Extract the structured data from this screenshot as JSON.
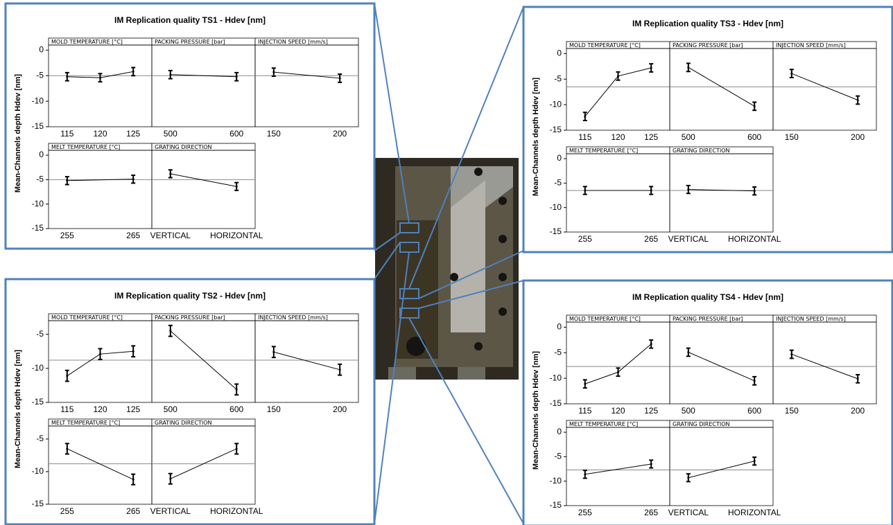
{
  "chart_data": [
    {
      "type": "line",
      "title": "IM Replication quality TS1 - Hdev [nm]",
      "ylabel": "Mean-Channels depth Hdev [nm]",
      "ylim": [
        -15,
        1
      ],
      "yticks": [
        -15,
        -10,
        -5,
        0
      ],
      "mean": -5,
      "color": "#000000",
      "panels": [
        {
          "title": "MOLD TEMPERATURE [°C]",
          "categories": [
            "115",
            "120",
            "125"
          ],
          "values": [
            -5.2,
            -5.4,
            -4.2
          ],
          "errors": [
            0.8,
            0.8,
            0.8
          ]
        },
        {
          "title": "PACKING PRESSURE [bar]",
          "categories": [
            "500",
            "600"
          ],
          "values": [
            -4.8,
            -5.2
          ],
          "errors": [
            0.8,
            0.8
          ]
        },
        {
          "title": "INJECTION SPEED [mm/s]",
          "categories": [
            "150",
            "200"
          ],
          "values": [
            -4.3,
            -5.5
          ],
          "errors": [
            0.8,
            0.8
          ]
        },
        {
          "title": "MELT TEMPERATURE [°C]",
          "categories": [
            "255",
            "265"
          ],
          "values": [
            -5.2,
            -4.9
          ],
          "errors": [
            0.8,
            0.8
          ]
        },
        {
          "title": "GRATING DIRECTION",
          "categories": [
            "VERTICAL",
            "HORIZONTAL"
          ],
          "values": [
            -3.8,
            -6.4
          ],
          "errors": [
            0.8,
            0.8
          ]
        }
      ]
    },
    {
      "type": "line",
      "title": "IM Replication quality TS2 - Hdev [nm]",
      "ylabel": "Mean-Channels depth Hdev [nm]",
      "ylim": [
        -15,
        -3
      ],
      "yticks": [
        -15,
        -10,
        -5
      ],
      "mean": -8.8,
      "color": "#000000",
      "panels": [
        {
          "title": "MOLD TEMPERATURE [°C]",
          "categories": [
            "115",
            "120",
            "125"
          ],
          "values": [
            -11.1,
            -7.9,
            -7.5
          ],
          "errors": [
            0.8,
            0.8,
            0.8
          ]
        },
        {
          "title": "PACKING PRESSURE [bar]",
          "categories": [
            "500",
            "600"
          ],
          "values": [
            -4.5,
            -13.1
          ],
          "errors": [
            0.8,
            0.8
          ]
        },
        {
          "title": "INJECTION SPEED [mm/s]",
          "categories": [
            "150",
            "200"
          ],
          "values": [
            -7.6,
            -10.2
          ],
          "errors": [
            0.8,
            0.8
          ]
        },
        {
          "title": "MELT TEMPERATURE [°C]",
          "categories": [
            "255",
            "265"
          ],
          "values": [
            -6.5,
            -11.2
          ],
          "errors": [
            0.8,
            0.8
          ]
        },
        {
          "title": "GRATING DIRECTION",
          "categories": [
            "VERTICAL",
            "HORIZONTAL"
          ],
          "values": [
            -11.1,
            -6.5
          ],
          "errors": [
            0.8,
            0.8
          ]
        }
      ]
    },
    {
      "type": "line",
      "title": "IM Replication quality TS3 - Hdev [nm]",
      "ylabel": "Mean-Channels depth Hdev [nm]",
      "ylim": [
        -15,
        1
      ],
      "yticks": [
        -15,
        -10,
        -5,
        0
      ],
      "mean": -6.5,
      "color": "#000000",
      "panels": [
        {
          "title": "MOLD TEMPERATURE [°C]",
          "categories": [
            "115",
            "120",
            "125"
          ],
          "values": [
            -12.3,
            -4.4,
            -2.8
          ],
          "errors": [
            0.8,
            0.8,
            0.8
          ]
        },
        {
          "title": "PACKING PRESSURE [bar]",
          "categories": [
            "500",
            "600"
          ],
          "values": [
            -2.7,
            -10.3
          ],
          "errors": [
            0.8,
            0.8
          ]
        },
        {
          "title": "INJECTION SPEED [mm/s]",
          "categories": [
            "150",
            "200"
          ],
          "values": [
            -3.9,
            -9.1
          ],
          "errors": [
            0.8,
            0.8
          ]
        },
        {
          "title": "MELT TEMPERATURE [°C]",
          "categories": [
            "255",
            "265"
          ],
          "values": [
            -6.5,
            -6.5
          ],
          "errors": [
            0.8,
            0.8
          ]
        },
        {
          "title": "GRATING DIRECTION",
          "categories": [
            "VERTICAL",
            "HORIZONTAL"
          ],
          "values": [
            -6.3,
            -6.6
          ],
          "errors": [
            0.8,
            0.8
          ]
        }
      ]
    },
    {
      "type": "line",
      "title": "IM Replication quality TS4 - Hdev [nm]",
      "ylabel": "Mean-Channels depth Hdev [nm]",
      "ylim": [
        -15,
        1
      ],
      "yticks": [
        -15,
        -10,
        -5,
        0
      ],
      "mean": -7.7,
      "color": "#000000",
      "panels": [
        {
          "title": "MOLD TEMPERATURE [°C]",
          "categories": [
            "115",
            "120",
            "125"
          ],
          "values": [
            -11.1,
            -8.8,
            -3.3
          ],
          "errors": [
            0.8,
            0.8,
            0.8
          ]
        },
        {
          "title": "PACKING PRESSURE [bar]",
          "categories": [
            "500",
            "600"
          ],
          "values": [
            -4.9,
            -10.5
          ],
          "errors": [
            0.8,
            0.8
          ]
        },
        {
          "title": "INJECTION SPEED [mm/s]",
          "categories": [
            "150",
            "200"
          ],
          "values": [
            -5.3,
            -10.1
          ],
          "errors": [
            0.8,
            0.8
          ]
        },
        {
          "title": "MELT TEMPERATURE [°C]",
          "categories": [
            "255",
            "265"
          ],
          "values": [
            -8.6,
            -6.5
          ],
          "errors": [
            0.8,
            0.8
          ]
        },
        {
          "title": "GRATING DIRECTION",
          "categories": [
            "VERTICAL",
            "HORIZONTAL"
          ],
          "values": [
            -9.3,
            -5.9
          ],
          "errors": [
            0.8,
            0.8
          ]
        }
      ]
    }
  ]
}
